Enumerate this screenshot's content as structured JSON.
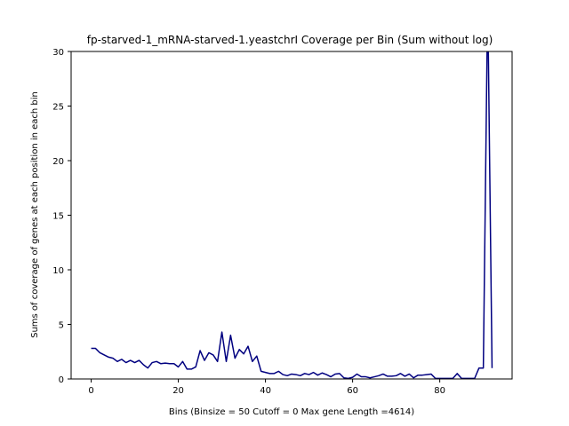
{
  "chart_data": {
    "type": "line",
    "title": "fp-starved-1_mRNA-starved-1.yeastchrI Coverage per Bin (Sum without log)",
    "xlabel": "Bins  (Binsize = 50 Cutoff = 0 Max gene Length =4614)",
    "ylabel": "Sums of coverage of genes at each position in each bin",
    "xlim": [
      -4.6,
      96.6
    ],
    "ylim": [
      0,
      30
    ],
    "x_ticks": [
      0,
      20,
      40,
      60,
      80
    ],
    "y_ticks": [
      0,
      5,
      10,
      15,
      20,
      25,
      30
    ],
    "grid": false,
    "line_color": "#000080",
    "series": [
      {
        "x": [
          0,
          1,
          2,
          3,
          4,
          5,
          6,
          7,
          8,
          9,
          10,
          11,
          12,
          13,
          14,
          15,
          16,
          17,
          18,
          19,
          20,
          21,
          22,
          23,
          24,
          25,
          26,
          27,
          28,
          29,
          30,
          31,
          32,
          33,
          34,
          35,
          36,
          37,
          38,
          39,
          40,
          41,
          42,
          43,
          44,
          45,
          46,
          47,
          48,
          49,
          50,
          51,
          52,
          53,
          54,
          55,
          56,
          57,
          58,
          59,
          60,
          61,
          62,
          63,
          64,
          65,
          66,
          67,
          68,
          69,
          70,
          71,
          72,
          73,
          74,
          75,
          76,
          77,
          78,
          79,
          80,
          81,
          82,
          83,
          84,
          85,
          86,
          87,
          88,
          89,
          90,
          91,
          92
        ],
        "values": [
          2.8,
          2.8,
          2.4,
          2.2,
          2.0,
          1.9,
          1.6,
          1.8,
          1.5,
          1.7,
          1.5,
          1.7,
          1.3,
          1.0,
          1.5,
          1.6,
          1.4,
          1.45,
          1.4,
          1.4,
          1.1,
          1.6,
          0.9,
          0.9,
          1.1,
          2.6,
          1.7,
          2.4,
          2.2,
          1.6,
          4.3,
          1.6,
          4.0,
          1.9,
          2.7,
          2.3,
          3.0,
          1.6,
          2.1,
          0.7,
          0.6,
          0.5,
          0.5,
          0.7,
          0.4,
          0.3,
          0.45,
          0.4,
          0.3,
          0.5,
          0.4,
          0.6,
          0.35,
          0.55,
          0.4,
          0.2,
          0.45,
          0.5,
          0.1,
          0.05,
          0.15,
          0.45,
          0.2,
          0.2,
          0.1,
          0.2,
          0.3,
          0.45,
          0.25,
          0.25,
          0.3,
          0.5,
          0.25,
          0.45,
          0.1,
          0.35,
          0.35,
          0.4,
          0.45,
          0.05,
          0.05,
          0.05,
          0.05,
          0.05,
          0.5,
          0.05,
          0.05,
          0.05,
          0.05,
          1.0,
          1.0,
          35,
          1.0
        ]
      }
    ]
  }
}
